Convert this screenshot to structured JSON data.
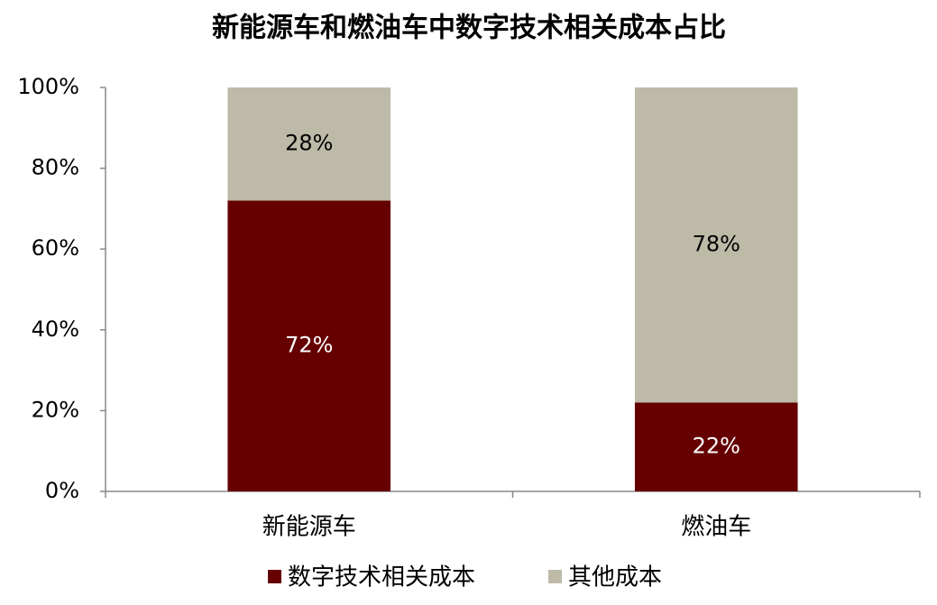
{
  "chart_data": {
    "type": "stacked-bar",
    "title": "新能源车和燃油车中数字技术相关成本占比",
    "categories": [
      "新能源车",
      "燃油车"
    ],
    "series": [
      {
        "name": "数字技术相关成本",
        "color": "#660000",
        "label_color": "#ffffff",
        "values": [
          72,
          22
        ],
        "value_labels": [
          "72%",
          "22%"
        ]
      },
      {
        "name": "其他成本",
        "color": "#bdbaa8",
        "label_color": "#000000",
        "values": [
          28,
          78
        ],
        "value_labels": [
          "28%",
          "78%"
        ]
      }
    ],
    "ylim": [
      0,
      100
    ],
    "yticks": [
      {
        "value": 0,
        "label": "0%"
      },
      {
        "value": 20,
        "label": "20%"
      },
      {
        "value": 40,
        "label": "40%"
      },
      {
        "value": 60,
        "label": "60%"
      },
      {
        "value": 80,
        "label": "80%"
      },
      {
        "value": 100,
        "label": "100%"
      }
    ],
    "grid": false,
    "legend": "bottom"
  }
}
